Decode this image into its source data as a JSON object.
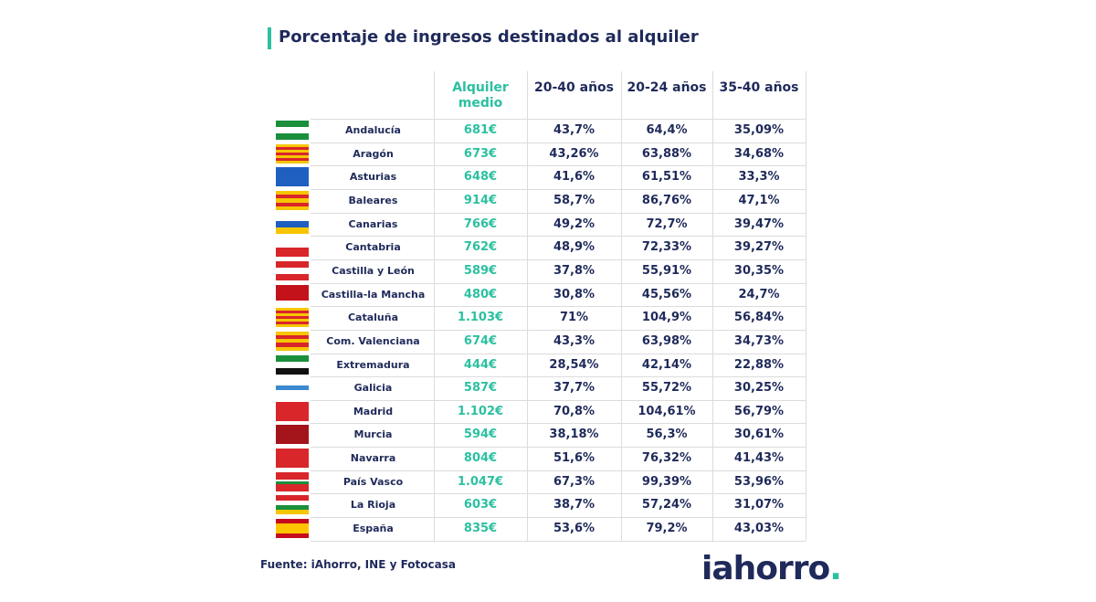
{
  "title": "Porcentaje de ingresos destinados al alquiler",
  "table": {
    "header": [
      "Alquiler medio",
      "20-40 años",
      "20-24 años",
      "35-40 años"
    ],
    "rows": [
      [
        "Andalucía",
        "681€",
        "43,7%",
        "64,4%",
        "35,09%"
      ],
      [
        "Aragón",
        "673€",
        "43,26%",
        "63,88%",
        "34,68%"
      ],
      [
        "Asturias",
        "648€",
        "41,6%",
        "61,51%",
        "33,3%"
      ],
      [
        "Baleares",
        "914€",
        "58,7%",
        "86,76%",
        "47,1%"
      ],
      [
        "Canarias",
        "766€",
        "49,2%",
        "72,7%",
        "39,47%"
      ],
      [
        "Cantabria",
        "762€",
        "48,9%",
        "72,33%",
        "39,27%"
      ],
      [
        "Castilla y León",
        "589€",
        "37,8%",
        "55,91%",
        "30,35%"
      ],
      [
        "Castilla-la Mancha",
        "480€",
        "30,8%",
        "45,56%",
        "24,7%"
      ],
      [
        "Cataluña",
        "1.103€",
        "71%",
        "104,9%",
        "56,84%"
      ],
      [
        "Com. Valenciana",
        "674€",
        "43,3%",
        "63,98%",
        "34,73%"
      ],
      [
        "Extremadura",
        "444€",
        "28,54%",
        "42,14%",
        "22,88%"
      ],
      [
        "Galicia",
        "587€",
        "37,7%",
        "55,72%",
        "30,25%"
      ],
      [
        "Madrid",
        "1.102€",
        "70,8%",
        "104,61%",
        "56,79%"
      ],
      [
        "Murcia",
        "594€",
        "38,18%",
        "56,3%",
        "30,61%"
      ],
      [
        "Navarra",
        "804€",
        "51,6%",
        "76,32%",
        "41,43%"
      ],
      [
        "País Vasco",
        "1.047€",
        "67,3%",
        "99,39%",
        "53,96%"
      ],
      [
        "La Rioja",
        "603€",
        "38,7%",
        "57,24%",
        "31,07%"
      ],
      [
        "España",
        "835€",
        "53,6%",
        "79,2%",
        "43,03%"
      ]
    ]
  },
  "source": "Fuente: iAhorro, INE y Fotocasa",
  "logo": "iahorro"
}
